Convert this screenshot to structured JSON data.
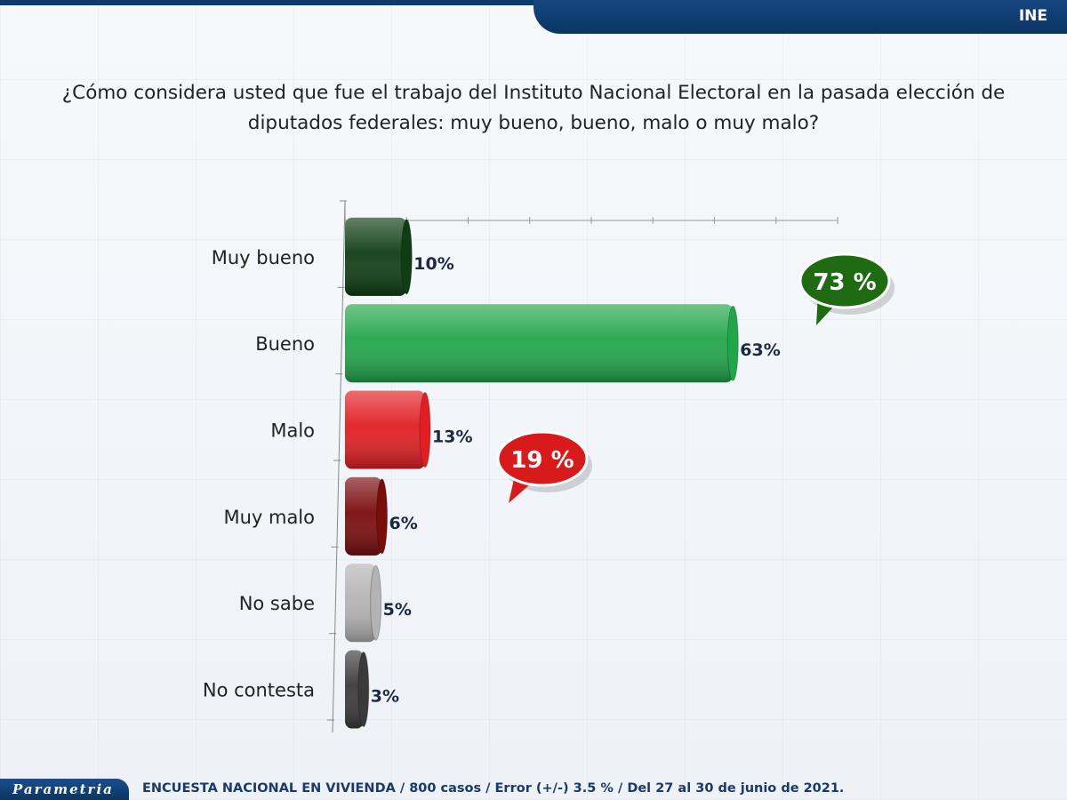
{
  "header": {
    "label": "INE"
  },
  "question": "¿Cómo considera usted que fue el trabajo del Instituto Nacional Electoral en la pasada elección de diputados federales: muy bueno, bueno, malo o muy malo?",
  "chart_data": {
    "type": "bar",
    "orientation": "horizontal",
    "categories": [
      "Muy bueno",
      "Bueno",
      "Malo",
      "Muy malo",
      "No sabe",
      "No contesta"
    ],
    "values": [
      10,
      63,
      13,
      6,
      5,
      3
    ],
    "value_labels": [
      "10%",
      "63%",
      "13%",
      "6%",
      "5%",
      "3%"
    ],
    "bar_colors": [
      "#0f3d14",
      "#22a64a",
      "#e21e23",
      "#7a0c0c",
      "#b3b3b3",
      "#3a3a3a"
    ],
    "xlim": [
      0,
      80
    ],
    "grid": true,
    "callouts": [
      {
        "text": "73 %",
        "color": "#1f6b12"
      },
      {
        "text": "19 %",
        "color": "#d91a1a"
      }
    ]
  },
  "footer": {
    "logo": "Parametria",
    "note": "ENCUESTA NACIONAL EN VIVIENDA / 800 casos / Error (+/-) 3.5 % / Del 27 al 30 de junio de 2021."
  }
}
